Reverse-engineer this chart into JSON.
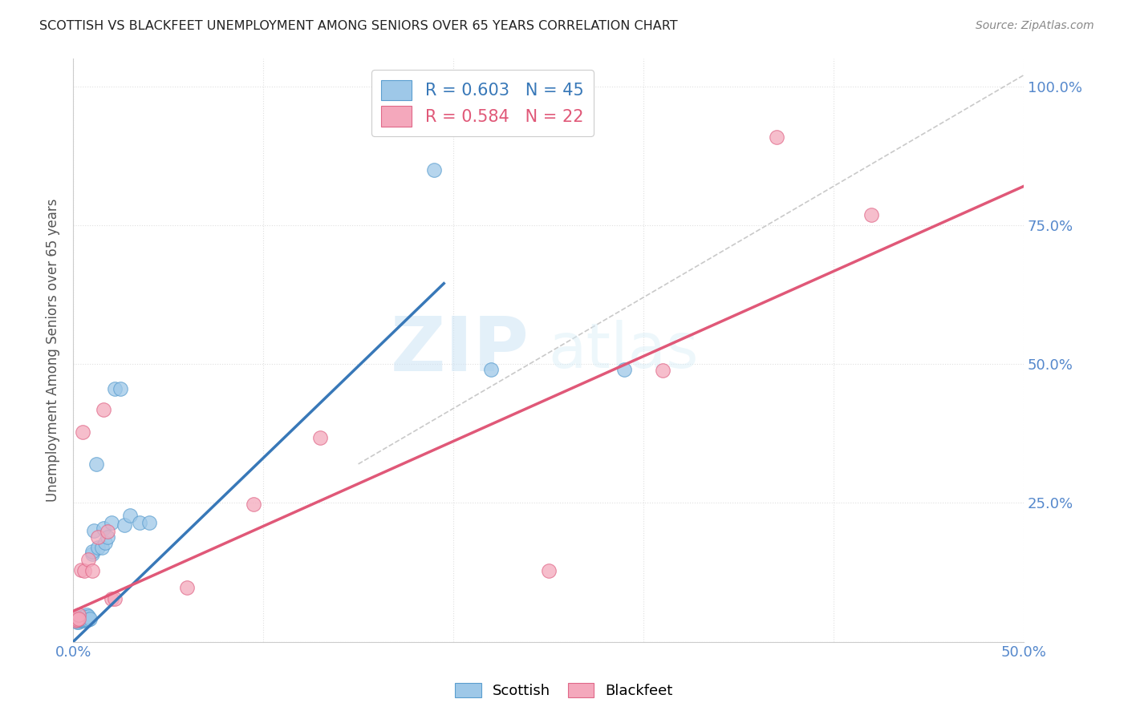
{
  "title": "SCOTTISH VS BLACKFEET UNEMPLOYMENT AMONG SENIORS OVER 65 YEARS CORRELATION CHART",
  "source": "Source: ZipAtlas.com",
  "ylabel": "Unemployment Among Seniors over 65 years",
  "xlim": [
    0.0,
    0.5
  ],
  "ylim": [
    0.0,
    1.05
  ],
  "xticks": [
    0.0,
    0.1,
    0.2,
    0.3,
    0.4,
    0.5
  ],
  "xtick_labels": [
    "0.0%",
    "",
    "",
    "",
    "",
    "50.0%"
  ],
  "ytick_positions": [
    0.0,
    0.25,
    0.5,
    0.75,
    1.0
  ],
  "ytick_labels_right": [
    "",
    "25.0%",
    "50.0%",
    "75.0%",
    "100.0%"
  ],
  "watermark_line1": "ZIP",
  "watermark_line2": "atlas",
  "scottish_R": 0.603,
  "scottish_N": 45,
  "blackfeet_R": 0.584,
  "blackfeet_N": 22,
  "scottish_color": "#9ec8e8",
  "blackfeet_color": "#f4a8bc",
  "scottish_edge_color": "#5b9ecf",
  "blackfeet_edge_color": "#e06888",
  "scottish_line_color": "#3878b8",
  "blackfeet_line_color": "#e05878",
  "ref_line_color": "#c0c0c0",
  "background_color": "#ffffff",
  "axis_label_color": "#5588cc",
  "title_color": "#222222",
  "source_color": "#888888",
  "watermark_color": "#cde4f5",
  "scottish_line_x": [
    0.0,
    0.195
  ],
  "scottish_line_y": [
    0.0,
    0.645
  ],
  "blackfeet_line_x": [
    0.0,
    0.5
  ],
  "blackfeet_line_y": [
    0.055,
    0.82
  ],
  "ref_line_x": [
    0.15,
    0.5
  ],
  "ref_line_y": [
    0.32,
    1.02
  ],
  "scottish_x": [
    0.001,
    0.001,
    0.002,
    0.002,
    0.002,
    0.003,
    0.003,
    0.003,
    0.003,
    0.004,
    0.004,
    0.004,
    0.004,
    0.005,
    0.005,
    0.005,
    0.005,
    0.006,
    0.006,
    0.006,
    0.006,
    0.007,
    0.007,
    0.008,
    0.008,
    0.009,
    0.01,
    0.01,
    0.011,
    0.012,
    0.013,
    0.015,
    0.016,
    0.017,
    0.018,
    0.02,
    0.022,
    0.025,
    0.027,
    0.03,
    0.035,
    0.04,
    0.19,
    0.22,
    0.29
  ],
  "scottish_y": [
    0.038,
    0.04,
    0.036,
    0.038,
    0.04,
    0.036,
    0.038,
    0.04,
    0.042,
    0.038,
    0.04,
    0.042,
    0.044,
    0.038,
    0.04,
    0.042,
    0.045,
    0.038,
    0.04,
    0.042,
    0.046,
    0.04,
    0.048,
    0.04,
    0.046,
    0.042,
    0.158,
    0.162,
    0.2,
    0.32,
    0.17,
    0.17,
    0.205,
    0.178,
    0.188,
    0.215,
    0.455,
    0.455,
    0.21,
    0.228,
    0.215,
    0.215,
    0.85,
    0.49,
    0.49
  ],
  "blackfeet_x": [
    0.001,
    0.002,
    0.002,
    0.003,
    0.003,
    0.004,
    0.005,
    0.006,
    0.008,
    0.01,
    0.013,
    0.016,
    0.018,
    0.02,
    0.022,
    0.06,
    0.095,
    0.13,
    0.25,
    0.31,
    0.37,
    0.42
  ],
  "blackfeet_y": [
    0.038,
    0.042,
    0.04,
    0.048,
    0.042,
    0.13,
    0.378,
    0.128,
    0.148,
    0.128,
    0.188,
    0.418,
    0.198,
    0.078,
    0.078,
    0.098,
    0.248,
    0.368,
    0.128,
    0.488,
    0.908,
    0.768
  ]
}
